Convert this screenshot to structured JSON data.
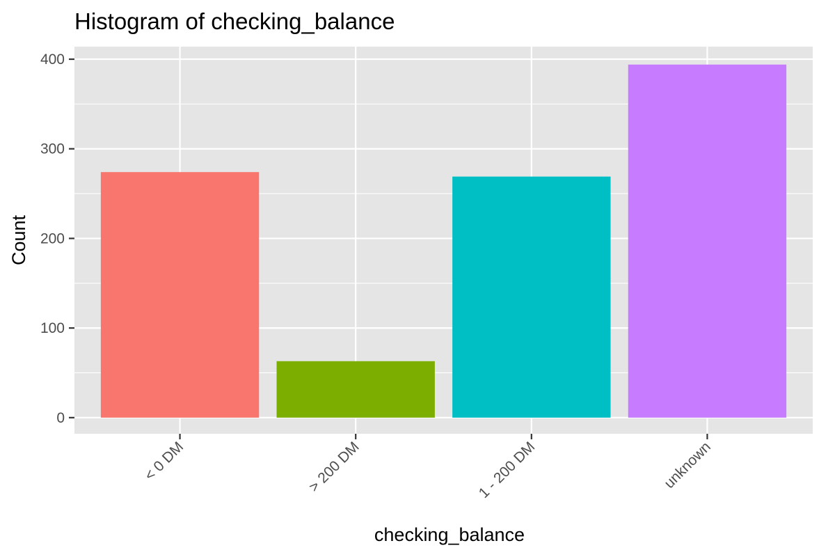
{
  "chart_data": {
    "type": "bar",
    "title": "Histogram of checking_balance",
    "xlabel": "checking_balance",
    "ylabel": "Count",
    "categories": [
      "< 0 DM",
      "> 200 DM",
      "1 - 200 DM",
      "unknown"
    ],
    "values": [
      274,
      63,
      269,
      394
    ],
    "colors": [
      "#F8766D",
      "#7CAE00",
      "#00BFC4",
      "#C77CFF"
    ],
    "ylim": [
      -18,
      414
    ],
    "yticks": [
      0,
      100,
      200,
      300,
      400
    ],
    "grid": true,
    "panel_background": "#E5E5E5",
    "gridline_color": "#FFFFFF",
    "legend": "none"
  }
}
